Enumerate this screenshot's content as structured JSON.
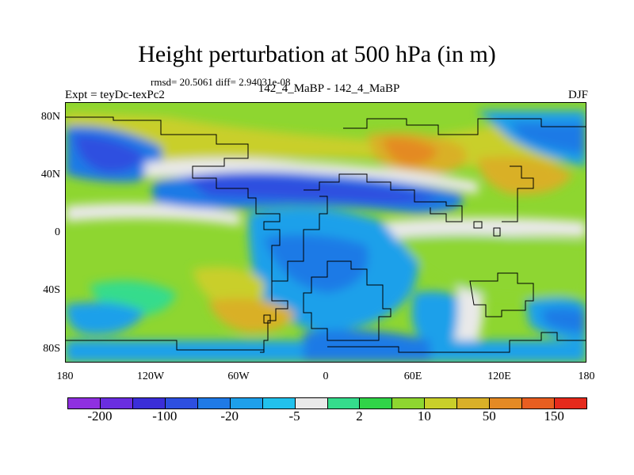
{
  "title": "Height perturbation at 500 hPa (in m)",
  "stats_line": "rmsd= 20.5061 diff= 2.94031e-08",
  "center_label": "142_4_MaBP - 142_4_MaBP",
  "expt_label": "Expt = teyDc-texPc2",
  "season": "DJF",
  "y_ticks": [
    "80N",
    "40N",
    "0",
    "40S",
    "80S"
  ],
  "x_ticks": [
    "180",
    "120W",
    "60W",
    "0",
    "60E",
    "120E",
    "180"
  ],
  "colorbar": {
    "colors": [
      "#8f30e0",
      "#6a2ee0",
      "#3b2ed8",
      "#2d4fe0",
      "#1f7ae6",
      "#1ea0ea",
      "#22c1ec",
      "#e9e9e9",
      "#35dc8c",
      "#30d448",
      "#8ed630",
      "#c9cf2a",
      "#d9b028",
      "#e48a24",
      "#e85e20",
      "#e52a1c"
    ],
    "labels": [
      "-200",
      "-100",
      "-20",
      "-5",
      "2",
      "10",
      "50",
      "150"
    ]
  }
}
